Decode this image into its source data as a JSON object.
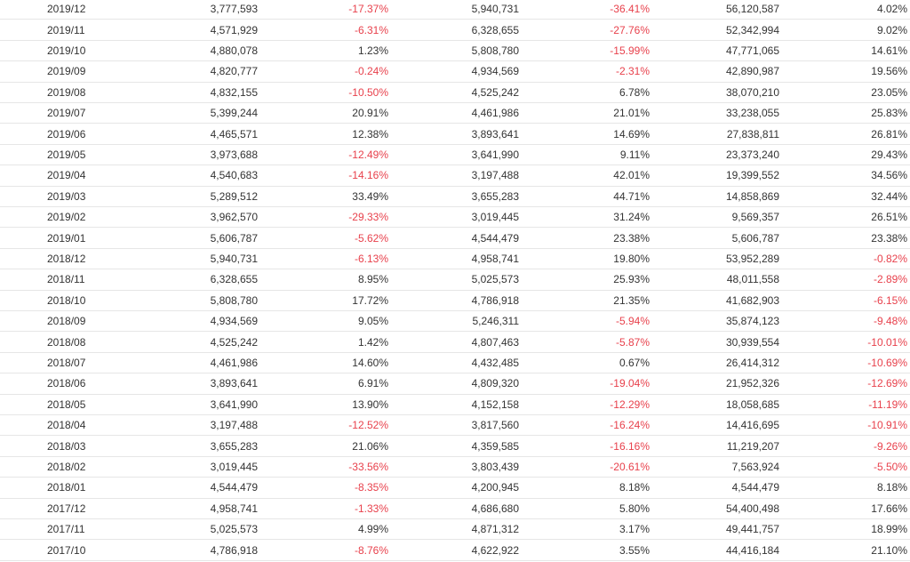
{
  "colors": {
    "negative": "#e8414c",
    "text": "#333333",
    "border": "#e6e6e6"
  },
  "table": {
    "rows": [
      [
        "2019/12",
        "3,777,593",
        "-17.37%",
        "5,940,731",
        "-36.41%",
        "56,120,587",
        "4.02%"
      ],
      [
        "2019/11",
        "4,571,929",
        "-6.31%",
        "6,328,655",
        "-27.76%",
        "52,342,994",
        "9.02%"
      ],
      [
        "2019/10",
        "4,880,078",
        "1.23%",
        "5,808,780",
        "-15.99%",
        "47,771,065",
        "14.61%"
      ],
      [
        "2019/09",
        "4,820,777",
        "-0.24%",
        "4,934,569",
        "-2.31%",
        "42,890,987",
        "19.56%"
      ],
      [
        "2019/08",
        "4,832,155",
        "-10.50%",
        "4,525,242",
        "6.78%",
        "38,070,210",
        "23.05%"
      ],
      [
        "2019/07",
        "5,399,244",
        "20.91%",
        "4,461,986",
        "21.01%",
        "33,238,055",
        "25.83%"
      ],
      [
        "2019/06",
        "4,465,571",
        "12.38%",
        "3,893,641",
        "14.69%",
        "27,838,811",
        "26.81%"
      ],
      [
        "2019/05",
        "3,973,688",
        "-12.49%",
        "3,641,990",
        "9.11%",
        "23,373,240",
        "29.43%"
      ],
      [
        "2019/04",
        "4,540,683",
        "-14.16%",
        "3,197,488",
        "42.01%",
        "19,399,552",
        "34.56%"
      ],
      [
        "2019/03",
        "5,289,512",
        "33.49%",
        "3,655,283",
        "44.71%",
        "14,858,869",
        "32.44%"
      ],
      [
        "2019/02",
        "3,962,570",
        "-29.33%",
        "3,019,445",
        "31.24%",
        "9,569,357",
        "26.51%"
      ],
      [
        "2019/01",
        "5,606,787",
        "-5.62%",
        "4,544,479",
        "23.38%",
        "5,606,787",
        "23.38%"
      ],
      [
        "2018/12",
        "5,940,731",
        "-6.13%",
        "4,958,741",
        "19.80%",
        "53,952,289",
        "-0.82%"
      ],
      [
        "2018/11",
        "6,328,655",
        "8.95%",
        "5,025,573",
        "25.93%",
        "48,011,558",
        "-2.89%"
      ],
      [
        "2018/10",
        "5,808,780",
        "17.72%",
        "4,786,918",
        "21.35%",
        "41,682,903",
        "-6.15%"
      ],
      [
        "2018/09",
        "4,934,569",
        "9.05%",
        "5,246,311",
        "-5.94%",
        "35,874,123",
        "-9.48%"
      ],
      [
        "2018/08",
        "4,525,242",
        "1.42%",
        "4,807,463",
        "-5.87%",
        "30,939,554",
        "-10.01%"
      ],
      [
        "2018/07",
        "4,461,986",
        "14.60%",
        "4,432,485",
        "0.67%",
        "26,414,312",
        "-10.69%"
      ],
      [
        "2018/06",
        "3,893,641",
        "6.91%",
        "4,809,320",
        "-19.04%",
        "21,952,326",
        "-12.69%"
      ],
      [
        "2018/05",
        "3,641,990",
        "13.90%",
        "4,152,158",
        "-12.29%",
        "18,058,685",
        "-11.19%"
      ],
      [
        "2018/04",
        "3,197,488",
        "-12.52%",
        "3,817,560",
        "-16.24%",
        "14,416,695",
        "-10.91%"
      ],
      [
        "2018/03",
        "3,655,283",
        "21.06%",
        "4,359,585",
        "-16.16%",
        "11,219,207",
        "-9.26%"
      ],
      [
        "2018/02",
        "3,019,445",
        "-33.56%",
        "3,803,439",
        "-20.61%",
        "7,563,924",
        "-5.50%"
      ],
      [
        "2018/01",
        "4,544,479",
        "-8.35%",
        "4,200,945",
        "8.18%",
        "4,544,479",
        "8.18%"
      ],
      [
        "2017/12",
        "4,958,741",
        "-1.33%",
        "4,686,680",
        "5.80%",
        "54,400,498",
        "17.66%"
      ],
      [
        "2017/11",
        "5,025,573",
        "4.99%",
        "4,871,312",
        "3.17%",
        "49,441,757",
        "18.99%"
      ],
      [
        "2017/10",
        "4,786,918",
        "-8.76%",
        "4,622,922",
        "3.55%",
        "44,416,184",
        "21.10%"
      ]
    ]
  }
}
